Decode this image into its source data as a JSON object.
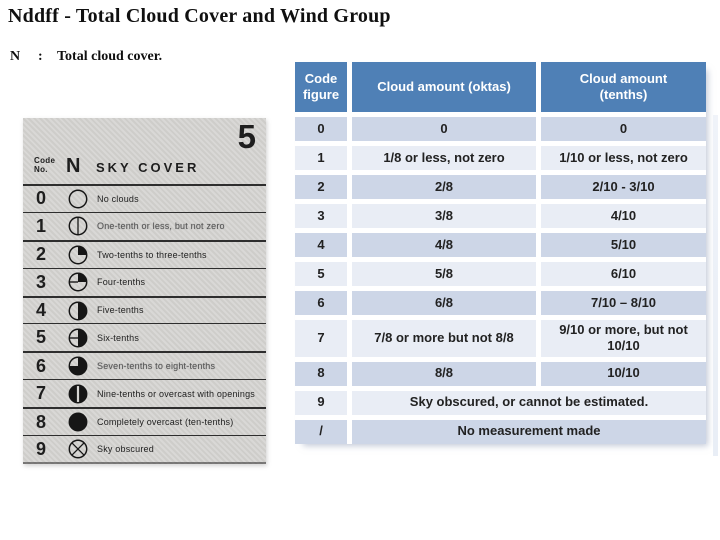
{
  "slide": {
    "title": "Nddff - Total Cloud Cover and Wind Group",
    "subtitle": {
      "symbol": "N",
      "separator": ":",
      "text": "Total cloud cover."
    }
  },
  "colors": {
    "header_bg": "#4F80B6",
    "band_dark": "#CDD6E7",
    "band_light": "#E9EDF5",
    "table_text": "#222222",
    "header_text": "#FFFFFF",
    "scan_bg": "#D7D6D3",
    "scan_line": "#2E2E2E",
    "scan_text": "#1E1E1E"
  },
  "sky_cover_chart": {
    "page_number": "5",
    "header": {
      "code_label": "Code\nNo.",
      "symbol_letter": "N",
      "title": "SKY COVER"
    },
    "rows": [
      {
        "code": "0",
        "symbol": "circle-empty-icon",
        "label": "No clouds",
        "faded": false
      },
      {
        "code": "1",
        "symbol": "circle-vertical-line-icon",
        "label": "One-tenth or less, but not zero",
        "faded": true
      },
      {
        "code": "2",
        "symbol": "circle-quarter-icon",
        "label": "Two-tenths to three-tenths",
        "faded": false
      },
      {
        "code": "3",
        "symbol": "circle-quarter-hline-icon",
        "label": "Four-tenths",
        "faded": false
      },
      {
        "code": "4",
        "symbol": "circle-half-icon",
        "label": "Five-tenths",
        "faded": false
      },
      {
        "code": "5",
        "symbol": "circle-half-hline-icon",
        "label": "Six-tenths",
        "faded": false
      },
      {
        "code": "6",
        "symbol": "circle-three-quarters-icon",
        "label": "Seven-tenths to eight-tenths",
        "faded": true
      },
      {
        "code": "7",
        "symbol": "circle-filled-stripe-icon",
        "label": "Nine-tenths or overcast with openings",
        "faded": false
      },
      {
        "code": "8",
        "symbol": "circle-filled-icon",
        "label": "Completely overcast (ten-tenths)",
        "faded": false
      },
      {
        "code": "9",
        "symbol": "circle-crossed-icon",
        "label": "Sky obscured",
        "faded": false
      }
    ]
  },
  "cloud_table": {
    "columns": [
      "Code figure",
      "Cloud amount (oktas)",
      "Cloud amount (tenths)"
    ],
    "rows": [
      {
        "code": "0",
        "oktas": "0",
        "tenths": "0"
      },
      {
        "code": "1",
        "oktas": "1/8 or less, not zero",
        "tenths": "1/10 or less, not zero"
      },
      {
        "code": "2",
        "oktas": "2/8",
        "tenths": "2/10 - 3/10"
      },
      {
        "code": "3",
        "oktas": "3/8",
        "tenths": "4/10"
      },
      {
        "code": "4",
        "oktas": "4/8",
        "tenths": "5/10"
      },
      {
        "code": "5",
        "oktas": "5/8",
        "tenths": "6/10"
      },
      {
        "code": "6",
        "oktas": "6/8",
        "tenths": "7/10 – 8/10"
      },
      {
        "code": "7",
        "oktas": "7/8 or more but not 8/8",
        "tenths": "9/10 or more, but not 10/10",
        "wrap": true
      },
      {
        "code": "8",
        "oktas": "8/8",
        "tenths": "10/10"
      },
      {
        "code": "9",
        "merged": "Sky obscured, or cannot be estimated."
      },
      {
        "code": "/",
        "merged": "No measurement made"
      }
    ]
  }
}
